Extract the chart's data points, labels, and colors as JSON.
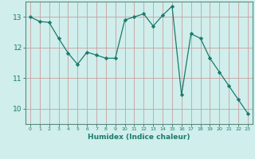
{
  "x": [
    0,
    1,
    2,
    3,
    4,
    5,
    6,
    7,
    8,
    9,
    10,
    11,
    12,
    13,
    14,
    15,
    16,
    17,
    18,
    19,
    20,
    21,
    22,
    23
  ],
  "y": [
    13.0,
    12.85,
    12.82,
    12.3,
    11.82,
    11.45,
    11.85,
    11.75,
    11.65,
    11.65,
    12.9,
    13.0,
    13.1,
    12.7,
    13.05,
    13.35,
    10.45,
    12.45,
    12.3,
    11.65,
    11.2,
    10.75,
    10.3,
    9.85
  ],
  "line_color": "#1a7a6e",
  "marker": "D",
  "marker_size": 2.2,
  "bg_color": "#d0eeeb",
  "grid_color": "#c8a0a0",
  "xlabel": "Humidex (Indice chaleur)",
  "yticks": [
    10,
    11,
    12,
    13
  ],
  "xticks": [
    0,
    1,
    2,
    3,
    4,
    5,
    6,
    7,
    8,
    9,
    10,
    11,
    12,
    13,
    14,
    15,
    16,
    17,
    18,
    19,
    20,
    21,
    22,
    23
  ],
  "ylim": [
    9.5,
    13.5
  ],
  "xlim": [
    -0.5,
    23.5
  ],
  "tick_color": "#1a7a6e",
  "spine_color": "#5a8a80"
}
